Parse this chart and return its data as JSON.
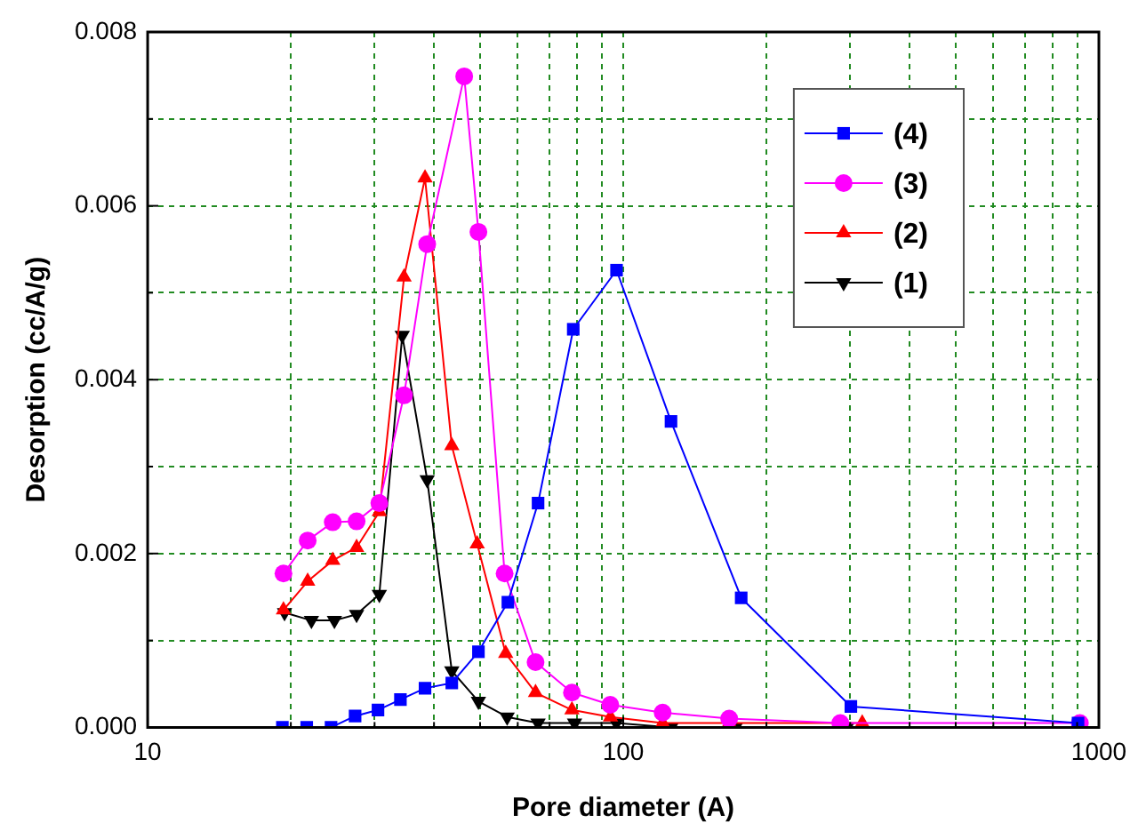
{
  "chart_data": {
    "type": "line",
    "xlabel": "Pore diameter (A)",
    "ylabel": "Desorption (cc/A/g)",
    "log": "x",
    "xlim": [
      10,
      1000
    ],
    "xticks": [
      10,
      {
        "value": 20,
        "label": null
      },
      {
        "value": 30,
        "label": null
      },
      {
        "value": 40,
        "label": null
      },
      {
        "value": 50,
        "label": null
      },
      {
        "value": 60,
        "label": null
      },
      {
        "value": 70,
        "label": null
      },
      {
        "value": 80,
        "label": null
      },
      {
        "value": 90,
        "label": null
      },
      100,
      {
        "value": 200,
        "label": null
      },
      {
        "value": 300,
        "label": null
      },
      {
        "value": 400,
        "label": null
      },
      {
        "value": 500,
        "label": null
      },
      {
        "value": 600,
        "label": null
      },
      {
        "value": 700,
        "label": null
      },
      {
        "value": 800,
        "label": null
      },
      {
        "value": 900,
        "label": null
      },
      1000
    ],
    "ylim": [
      0,
      0.008
    ],
    "yticks": [
      {
        "value": 0,
        "label": "0.000"
      },
      {
        "value": 0.001,
        "label": null
      },
      {
        "value": 0.002,
        "label": "0.002"
      },
      {
        "value": 0.003,
        "label": null
      },
      {
        "value": 0.004,
        "label": "0.004"
      },
      {
        "value": 0.005,
        "label": null
      },
      {
        "value": 0.006,
        "label": "0.006"
      },
      {
        "value": 0.007,
        "label": null
      },
      {
        "value": 0.008,
        "label": "0.008"
      }
    ],
    "grid": true,
    "legend": "top right",
    "line_style": "solid",
    "series": [
      {
        "name": "(4)",
        "color": "#0000ff",
        "marker": "square",
        "x": [
          19.2,
          21.6,
          24.3,
          27.3,
          30.5,
          34.0,
          38.3,
          43.6,
          49.6,
          57.2,
          66.2,
          78.5,
          96.8,
          126,
          177,
          301,
          904
        ],
        "values": [
          0,
          0,
          0,
          0.00013,
          0.0002,
          0.00032,
          0.00045,
          0.00051,
          0.00087,
          0.00144,
          0.00258,
          0.00458,
          0.00526,
          0.00352,
          0.00149,
          0.00024,
          5e-05
        ]
      },
      {
        "name": "(3)",
        "color": "#ff00ff",
        "marker": "circle",
        "x": [
          19.3,
          21.7,
          24.5,
          27.5,
          30.7,
          34.6,
          38.7,
          46.3,
          49.6,
          56.3,
          65.4,
          78.0,
          93.9,
          121,
          167,
          286,
          912
        ],
        "values": [
          0.00177,
          0.00215,
          0.00236,
          0.00237,
          0.00258,
          0.00382,
          0.00556,
          0.00749,
          0.0057,
          0.00177,
          0.00075,
          0.0004,
          0.00026,
          0.00017,
          0.0001,
          5e-05,
          5e-05
        ]
      },
      {
        "name": "(2)",
        "color": "#ff0000",
        "marker": "triangle",
        "x": [
          19.3,
          21.7,
          24.5,
          27.5,
          30.7,
          34.6,
          38.3,
          43.6,
          49.3,
          56.6,
          65.4,
          78.0,
          94.0,
          121,
          167,
          318
        ],
        "values": [
          0.00135,
          0.00168,
          0.00192,
          0.00207,
          0.00248,
          0.00518,
          0.00632,
          0.00324,
          0.00211,
          0.00085,
          0.0004,
          0.0002,
          0.00012,
          5e-05,
          5e-05,
          5e-05
        ]
      },
      {
        "name": "(1)",
        "color": "#000000",
        "marker": "triangle-down",
        "x": [
          19.4,
          22.1,
          24.7,
          27.5,
          30.7,
          34.3,
          38.7,
          43.6,
          49.6,
          57.0,
          66.2,
          79.0,
          96.7,
          126,
          172,
          295
        ],
        "values": [
          0.00132,
          0.00123,
          0.00123,
          0.0013,
          0.00153,
          0.00451,
          0.00285,
          0.00065,
          0.0003,
          0.00012,
          5e-05,
          5e-05,
          5e-05,
          0,
          0,
          0
        ]
      }
    ]
  }
}
